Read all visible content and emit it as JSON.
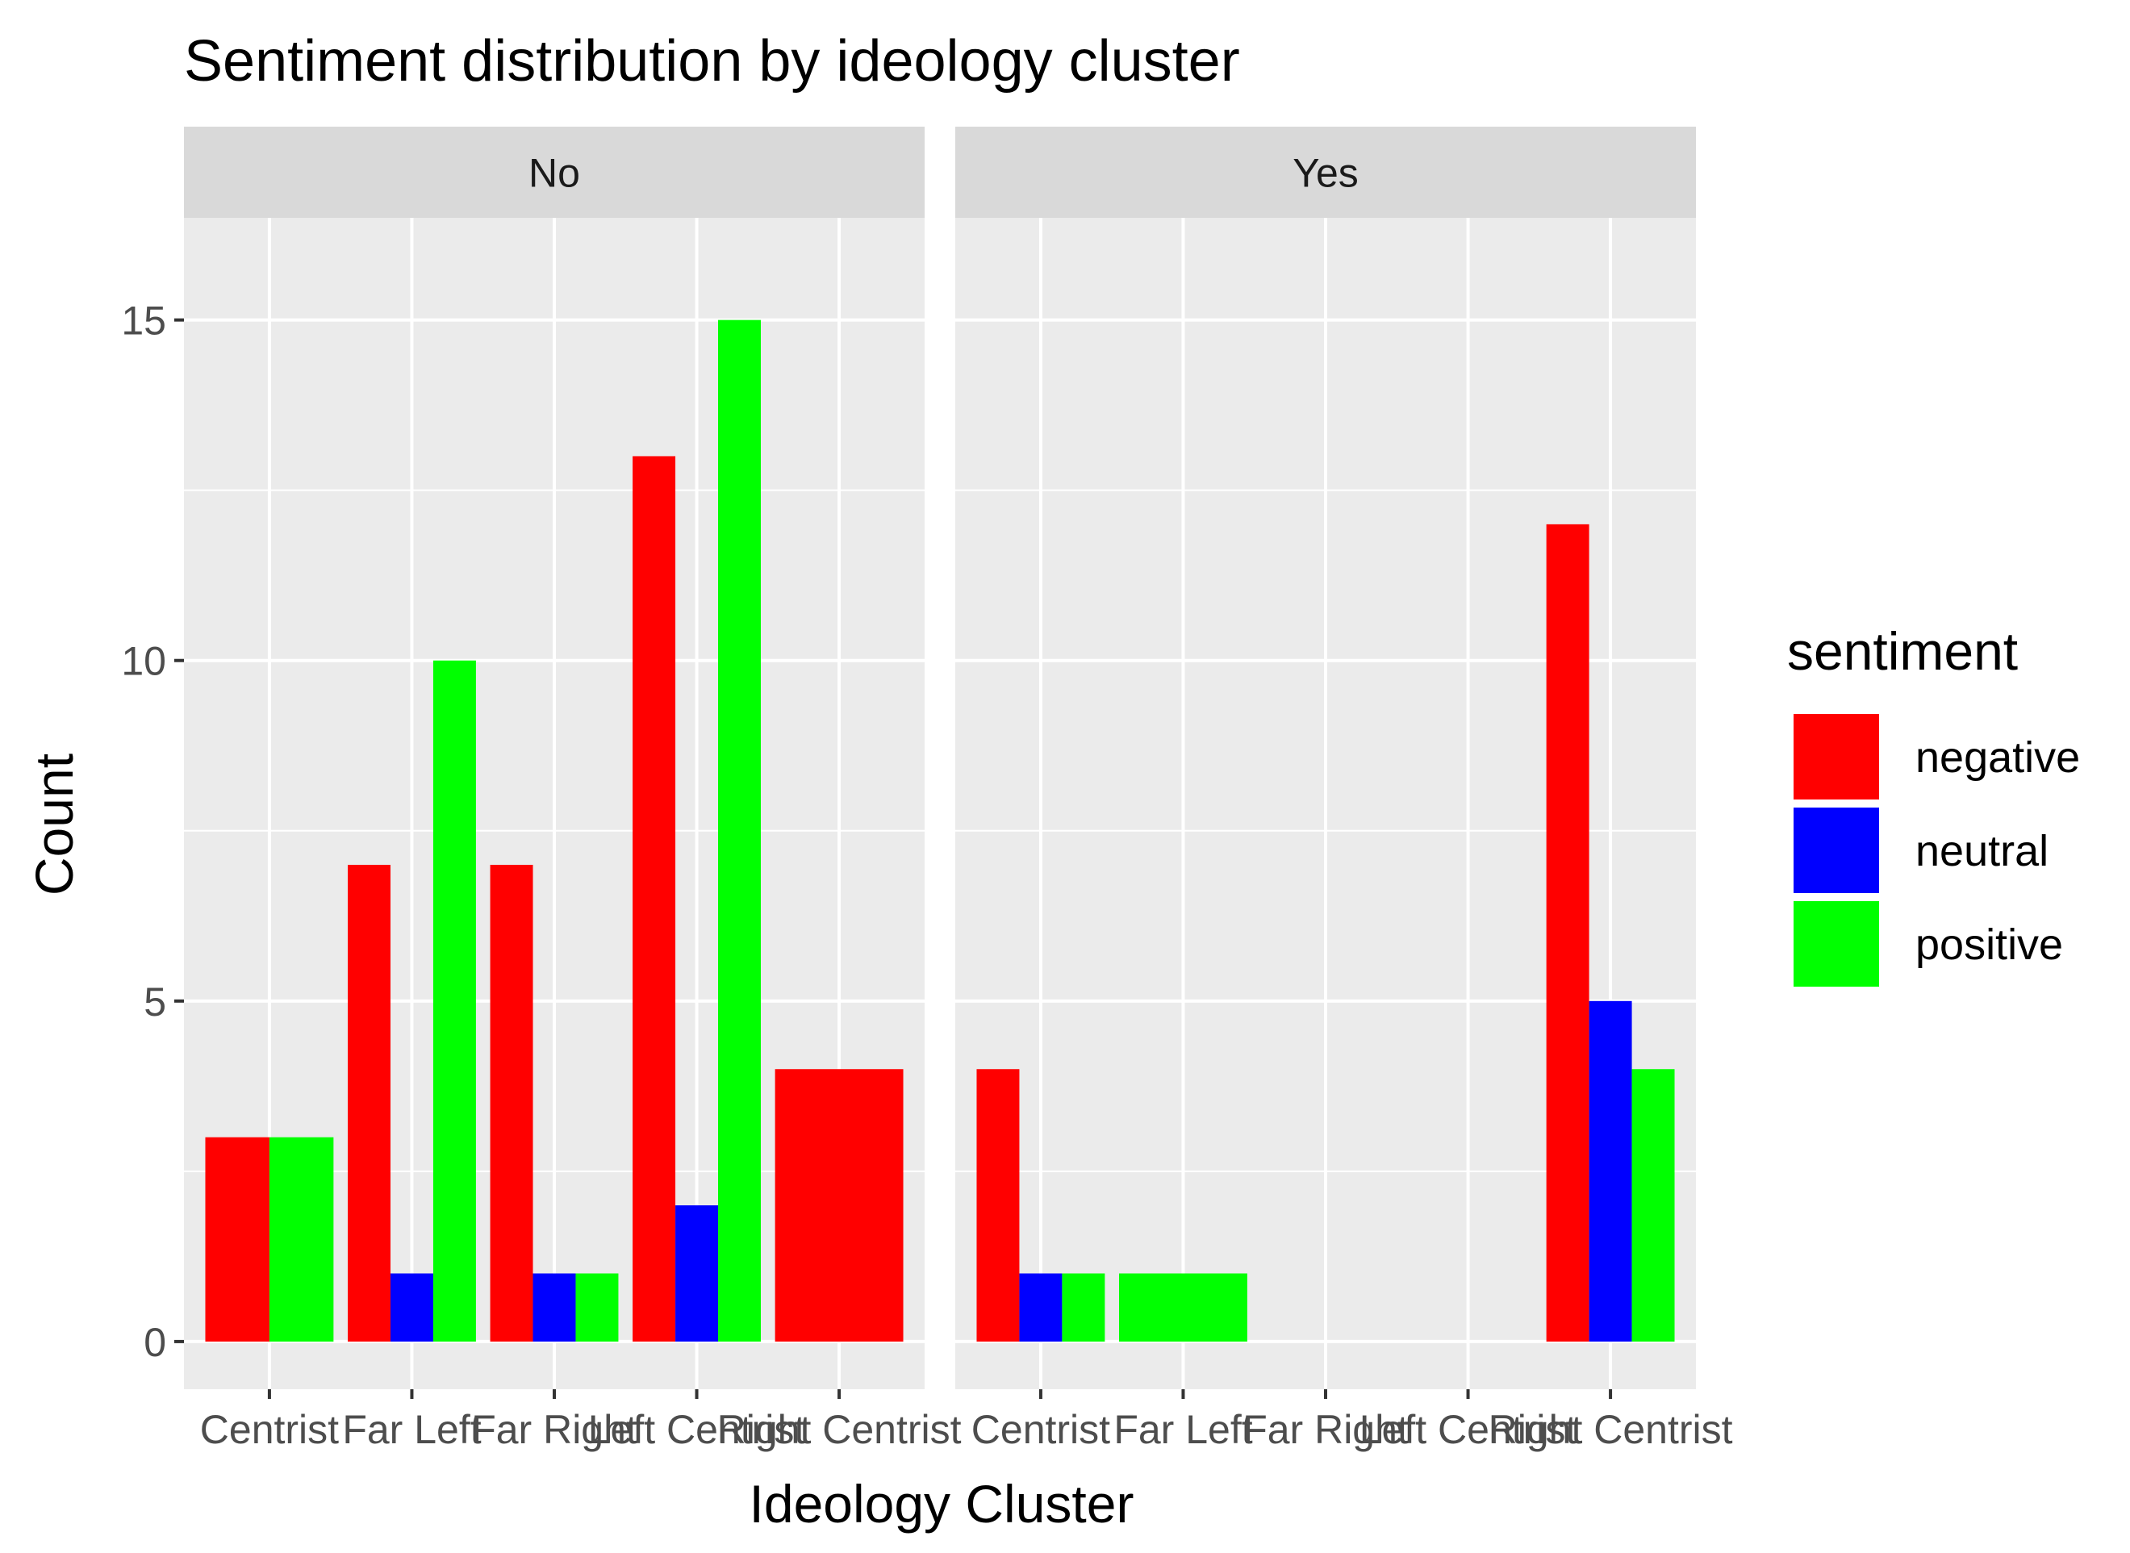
{
  "chart_data": {
    "type": "bar",
    "title": "Sentiment distribution by ideology cluster",
    "xlabel": "Ideology Cluster",
    "ylabel": "Count",
    "ylim": [
      -0.7,
      16.5
    ],
    "yticks": [
      0,
      5,
      10,
      15
    ],
    "categories": [
      "Centrist",
      "Far Left",
      "Far Right",
      "Left Centrist",
      "Right Centrist"
    ],
    "facets": [
      {
        "label": "No",
        "bars": [
          {
            "category": "Centrist",
            "sentiment": "negative",
            "value": 3
          },
          {
            "category": "Centrist",
            "sentiment": "positive",
            "value": 3
          },
          {
            "category": "Far Left",
            "sentiment": "negative",
            "value": 7
          },
          {
            "category": "Far Left",
            "sentiment": "neutral",
            "value": 1
          },
          {
            "category": "Far Left",
            "sentiment": "positive",
            "value": 10
          },
          {
            "category": "Far Right",
            "sentiment": "negative",
            "value": 7
          },
          {
            "category": "Far Right",
            "sentiment": "neutral",
            "value": 1
          },
          {
            "category": "Far Right",
            "sentiment": "positive",
            "value": 1
          },
          {
            "category": "Left Centrist",
            "sentiment": "negative",
            "value": 13
          },
          {
            "category": "Left Centrist",
            "sentiment": "neutral",
            "value": 2
          },
          {
            "category": "Left Centrist",
            "sentiment": "positive",
            "value": 15
          },
          {
            "category": "Right Centrist",
            "sentiment": "negative",
            "value": 4
          }
        ]
      },
      {
        "label": "Yes",
        "bars": [
          {
            "category": "Centrist",
            "sentiment": "negative",
            "value": 4
          },
          {
            "category": "Centrist",
            "sentiment": "neutral",
            "value": 1
          },
          {
            "category": "Centrist",
            "sentiment": "positive",
            "value": 1
          },
          {
            "category": "Far Left",
            "sentiment": "positive",
            "value": 1
          },
          {
            "category": "Right Centrist",
            "sentiment": "negative",
            "value": 12
          },
          {
            "category": "Right Centrist",
            "sentiment": "neutral",
            "value": 5
          },
          {
            "category": "Right Centrist",
            "sentiment": "positive",
            "value": 4
          }
        ]
      }
    ],
    "legend": {
      "title": "sentiment",
      "position": "right",
      "items": [
        {
          "label": "negative",
          "color": "#FF0000"
        },
        {
          "label": "neutral",
          "color": "#0000FF"
        },
        {
          "label": "positive",
          "color": "#00FF00"
        }
      ]
    },
    "grid": true,
    "colors": {
      "panel_background": "#EBEBEB",
      "strip_background": "#D9D9D9",
      "grid": "#FFFFFF"
    }
  }
}
